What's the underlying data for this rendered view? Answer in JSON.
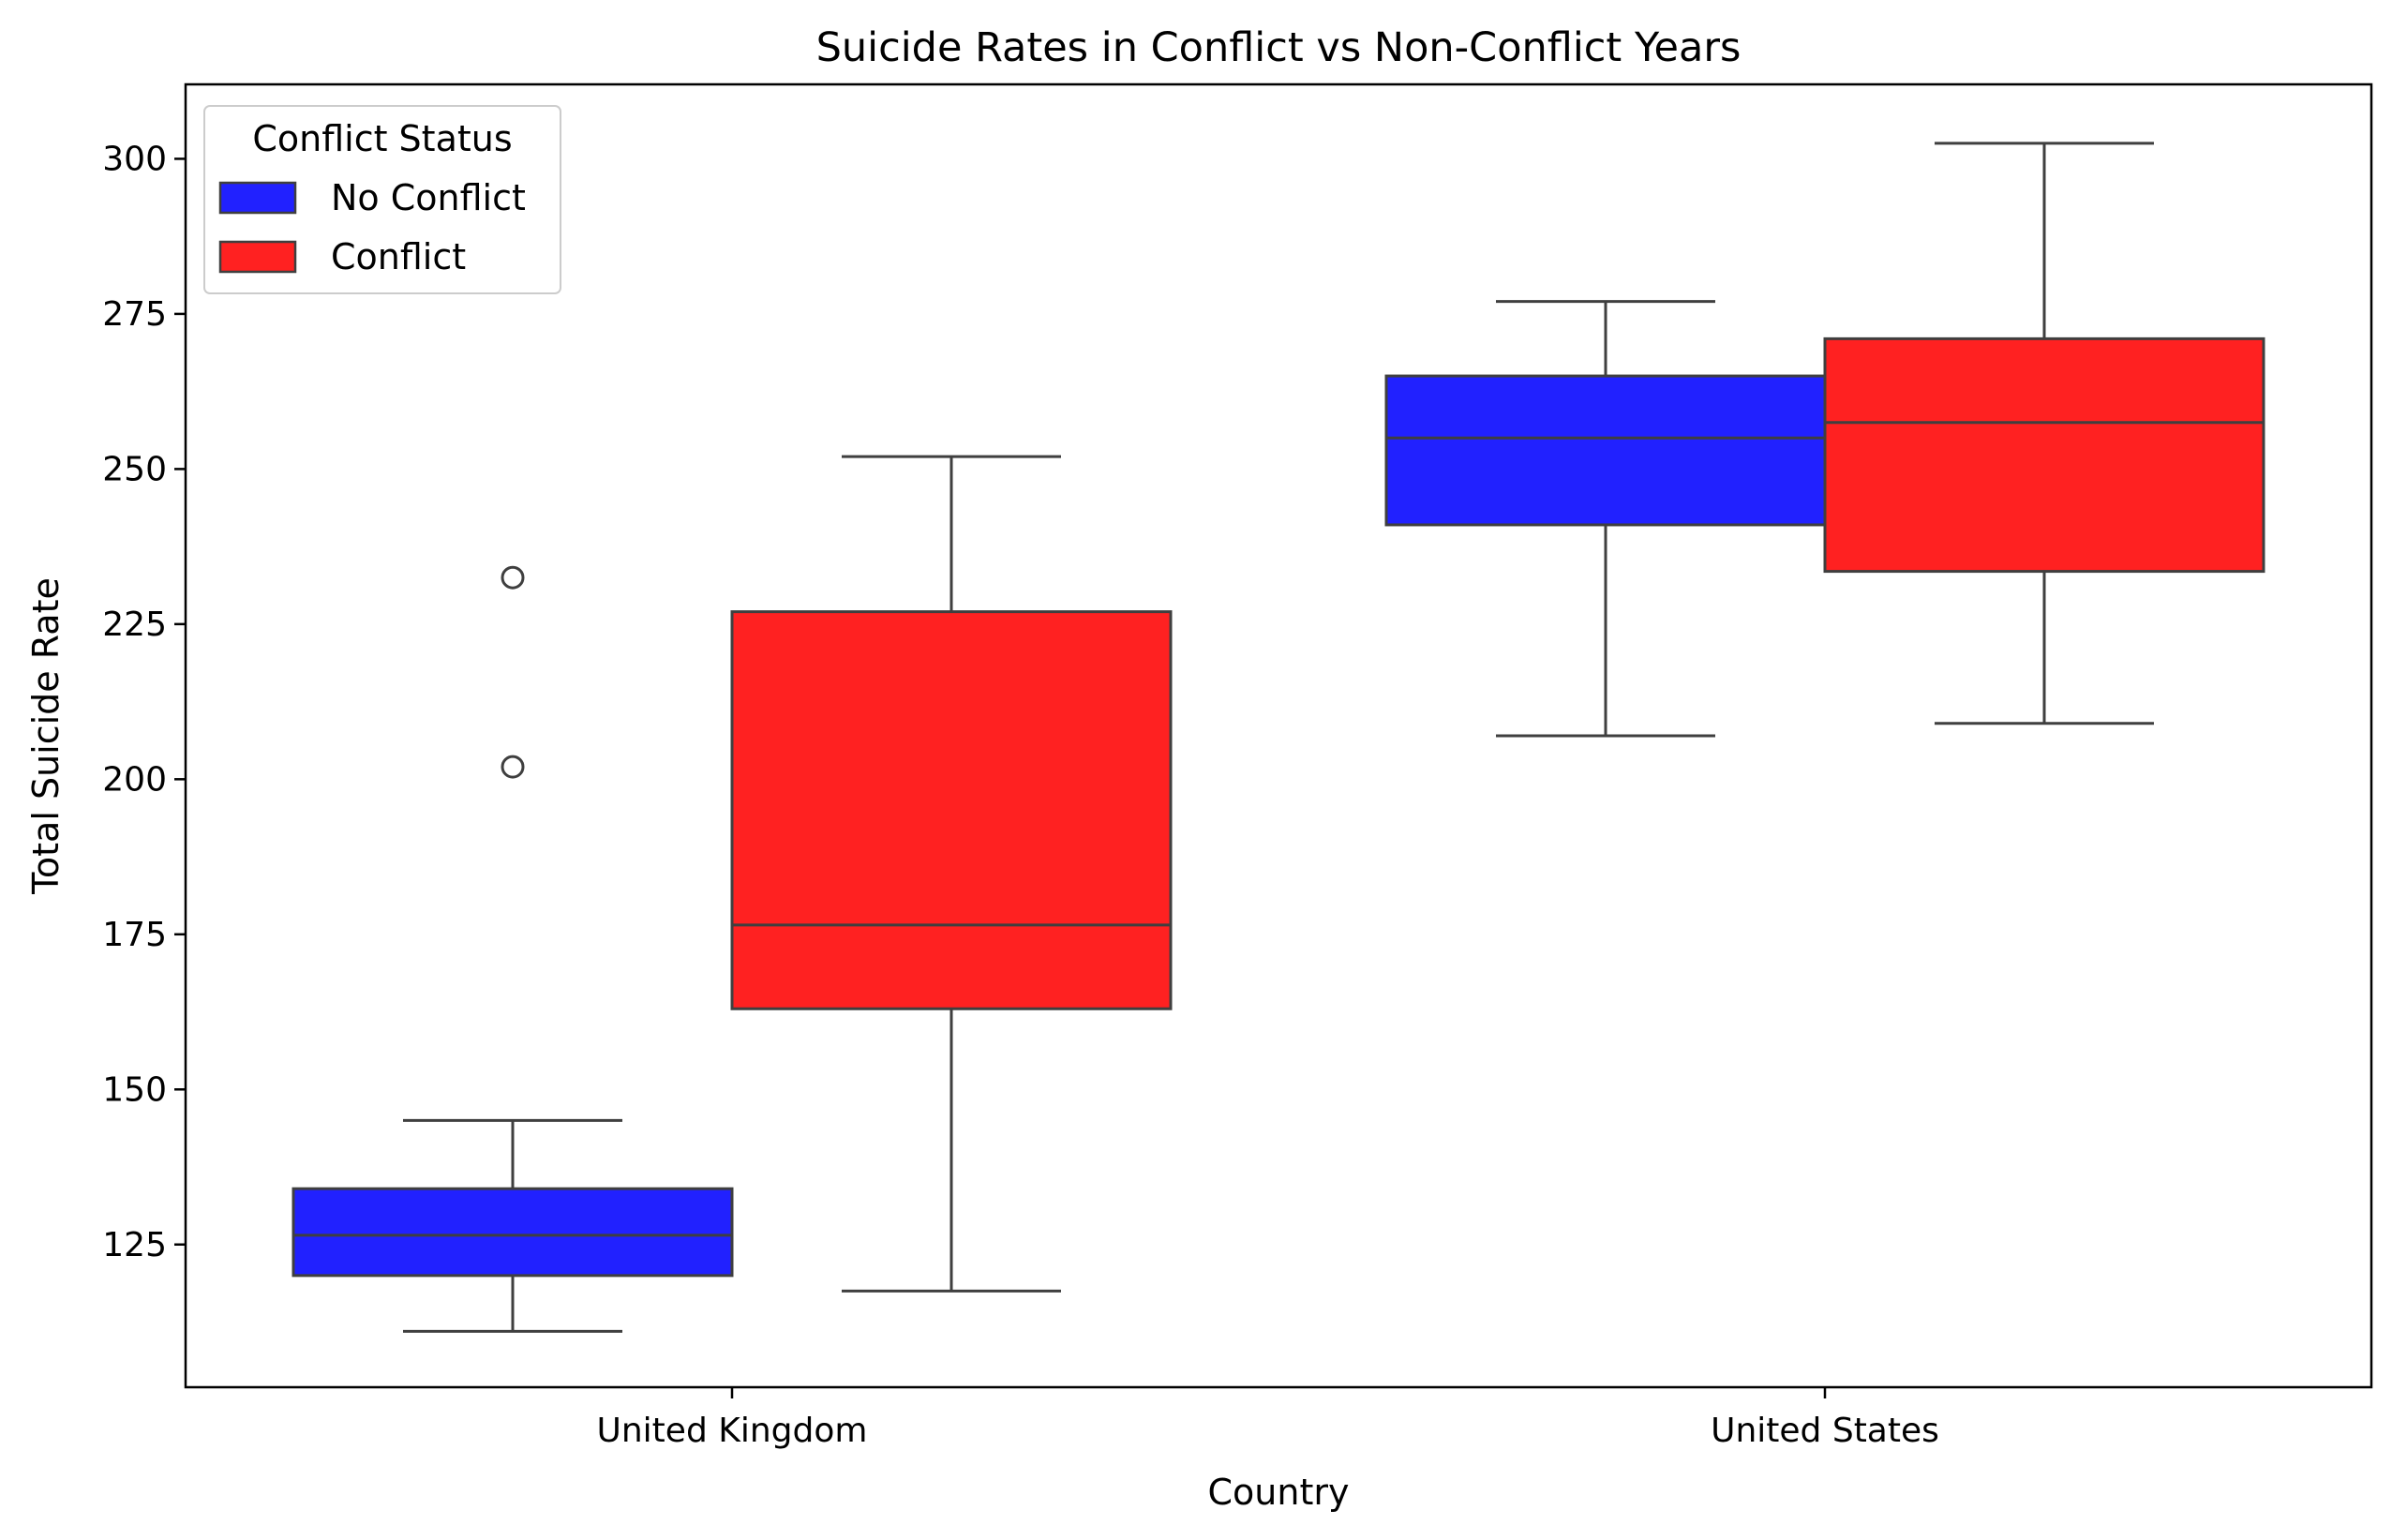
{
  "chart_data": {
    "type": "boxplot",
    "title": "Suicide Rates in Conflict vs Non-Conflict Years",
    "xlabel": "Country",
    "ylabel": "Total Suicide Rate",
    "ylim": [
      102,
      312
    ],
    "yticks": [
      125,
      150,
      175,
      200,
      225,
      250,
      275,
      300
    ],
    "categories": [
      "United Kingdom",
      "United States"
    ],
    "grid": false,
    "legend": {
      "title": "Conflict Status",
      "placement": "top-left",
      "entries": [
        {
          "label": "No Conflict",
          "color": "#0000ff"
        },
        {
          "label": "Conflict",
          "color": "#ff0000"
        }
      ]
    },
    "series": [
      {
        "name": "No Conflict",
        "color": "#0000ff",
        "boxes": [
          {
            "category": "United Kingdom",
            "whisker_low": 111,
            "q1": 120,
            "median": 126.5,
            "q3": 134,
            "whisker_high": 145,
            "outliers": [
              202,
              232.5
            ]
          },
          {
            "category": "United States",
            "whisker_low": 207,
            "q1": 241,
            "median": 255,
            "q3": 265,
            "whisker_high": 277,
            "outliers": []
          }
        ]
      },
      {
        "name": "Conflict",
        "color": "#ff0000",
        "boxes": [
          {
            "category": "United Kingdom",
            "whisker_low": 117.5,
            "q1": 163,
            "median": 176.5,
            "q3": 227,
            "whisker_high": 252,
            "outliers": []
          },
          {
            "category": "United States",
            "whisker_low": 209,
            "q1": 233.5,
            "median": 257.5,
            "q3": 271,
            "whisker_high": 302.5,
            "outliers": []
          }
        ]
      }
    ]
  }
}
